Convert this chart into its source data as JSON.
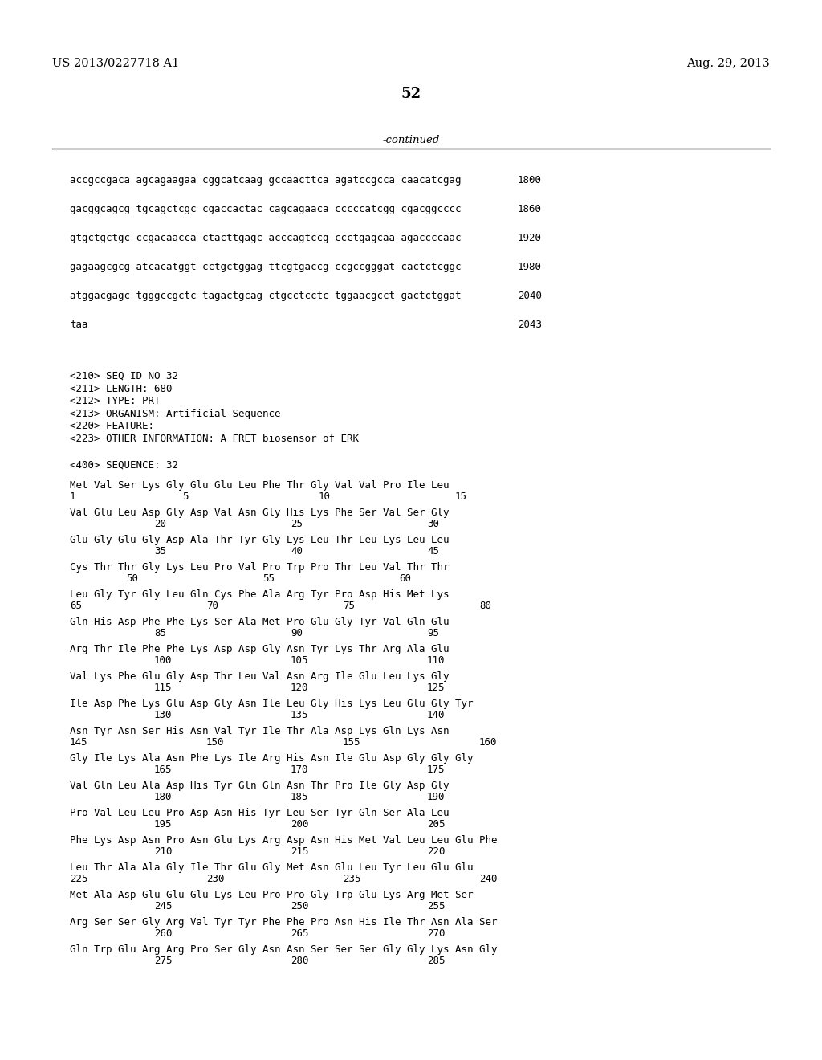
{
  "header_left": "US 2013/0227718 A1",
  "header_right": "Aug. 29, 2013",
  "page_number": "52",
  "continued_text": "-continued",
  "background_color": "#ffffff",
  "dna_lines": [
    {
      "seq": "accgccgaca agcagaagaa cggcatcaag gccaacttca agatccgcca caacatcgag",
      "num": "1800"
    },
    {
      "seq": "gacggcagcg tgcagctcgc cgaccactac cagcagaaca cccccatcgg cgacggcccc",
      "num": "1860"
    },
    {
      "seq": "gtgctgctgc ccgacaacca ctacttgagc acccagtccg ccctgagcaa agaccccaac",
      "num": "1920"
    },
    {
      "seq": "gagaagcgcg atcacatggt cctgctggag ttcgtgaccg ccgccgggat cactctcggc",
      "num": "1980"
    },
    {
      "seq": "atggacgagc tgggccgctc tagactgcag ctgcctcctc tggaacgcct gactctggat",
      "num": "2040"
    },
    {
      "seq": "taa",
      "num": "2043"
    }
  ],
  "info_lines": [
    "<210> SEQ ID NO 32",
    "<211> LENGTH: 680",
    "<212> TYPE: PRT",
    "<213> ORGANISM: Artificial Sequence",
    "<220> FEATURE:",
    "<223> OTHER INFORMATION: A FRET biosensor of ERK"
  ],
  "seq400_header": "<400> SEQUENCE: 32",
  "protein_entries": [
    {
      "seq": "Met Val Ser Lys Gly Glu Glu Leu Phe Thr Gly Val Val Pro Ile Leu",
      "nums": [
        [
          "1",
          87
        ],
        [
          "5",
          227
        ],
        [
          "10",
          397
        ],
        [
          "15",
          567
        ]
      ]
    },
    {
      "seq": "Val Glu Leu Asp Gly Asp Val Asn Gly His Lys Phe Ser Val Ser Gly",
      "nums": [
        [
          "20",
          192
        ],
        [
          "25",
          362
        ],
        [
          "30",
          532
        ]
      ]
    },
    {
      "seq": "Glu Gly Glu Gly Asp Ala Thr Tyr Gly Lys Leu Thr Leu Lys Leu Leu",
      "nums": [
        [
          "35",
          192
        ],
        [
          "40",
          362
        ],
        [
          "45",
          532
        ]
      ]
    },
    {
      "seq": "Cys Thr Thr Gly Lys Leu Pro Val Pro Trp Pro Thr Leu Val Thr Thr",
      "nums": [
        [
          "50",
          157
        ],
        [
          "55",
          327
        ],
        [
          "60",
          497
        ]
      ]
    },
    {
      "seq": "Leu Gly Tyr Gly Leu Gln Cys Phe Ala Arg Tyr Pro Asp His Met Lys",
      "nums": [
        [
          "65",
          87
        ],
        [
          "70",
          257
        ],
        [
          "75",
          427
        ],
        [
          "80",
          597
        ]
      ]
    },
    {
      "seq": "Gln His Asp Phe Phe Lys Ser Ala Met Pro Glu Gly Tyr Val Gln Glu",
      "nums": [
        [
          "85",
          192
        ],
        [
          "90",
          362
        ],
        [
          "95",
          532
        ]
      ]
    },
    {
      "seq": "Arg Thr Ile Phe Phe Lys Asp Asp Gly Asn Tyr Lys Thr Arg Ala Glu",
      "nums": [
        [
          "100",
          192
        ],
        [
          "105",
          362
        ],
        [
          "110",
          532
        ]
      ]
    },
    {
      "seq": "Val Lys Phe Glu Gly Asp Thr Leu Val Asn Arg Ile Glu Leu Lys Gly",
      "nums": [
        [
          "115",
          192
        ],
        [
          "120",
          362
        ],
        [
          "125",
          532
        ]
      ]
    },
    {
      "seq": "Ile Asp Phe Lys Glu Asp Gly Asn Ile Leu Gly His Lys Leu Glu Gly Tyr",
      "nums": [
        [
          "130",
          192
        ],
        [
          "135",
          362
        ],
        [
          "140",
          532
        ]
      ]
    },
    {
      "seq": "Asn Tyr Asn Ser His Asn Val Tyr Ile Thr Ala Asp Lys Gln Lys Asn",
      "nums": [
        [
          "145",
          87
        ],
        [
          "150",
          257
        ],
        [
          "155",
          427
        ],
        [
          "160",
          597
        ]
      ]
    },
    {
      "seq": "Gly Ile Lys Ala Asn Phe Lys Ile Arg His Asn Ile Glu Asp Gly Gly Gly",
      "nums": [
        [
          "165",
          192
        ],
        [
          "170",
          362
        ],
        [
          "175",
          532
        ]
      ]
    },
    {
      "seq": "Val Gln Leu Ala Asp His Tyr Gln Gln Asn Thr Pro Ile Gly Asp Gly",
      "nums": [
        [
          "180",
          192
        ],
        [
          "185",
          362
        ],
        [
          "190",
          532
        ]
      ]
    },
    {
      "seq": "Pro Val Leu Leu Pro Asp Asn His Tyr Leu Ser Tyr Gln Ser Ala Leu",
      "nums": [
        [
          "195",
          192
        ],
        [
          "200",
          362
        ],
        [
          "205",
          532
        ]
      ]
    },
    {
      "seq": "Phe Lys Asp Asn Pro Asn Glu Lys Arg Asp Asn His Met Val Leu Leu Glu Phe",
      "nums": [
        [
          "210",
          192
        ],
        [
          "215",
          362
        ],
        [
          "220",
          532
        ]
      ]
    },
    {
      "seq": "Leu Thr Ala Ala Gly Ile Thr Glu Gly Met Asn Glu Leu Tyr Leu Glu Glu",
      "nums": [
        [
          "225",
          87
        ],
        [
          "230",
          257
        ],
        [
          "235",
          427
        ],
        [
          "240",
          597
        ]
      ]
    },
    {
      "seq": "Met Ala Asp Glu Glu Glu Lys Leu Pro Pro Gly Trp Glu Lys Arg Met Ser",
      "nums": [
        [
          "245",
          192
        ],
        [
          "250",
          362
        ],
        [
          "255",
          532
        ]
      ]
    },
    {
      "seq": "Arg Ser Ser Gly Arg Val Tyr Tyr Phe Phe Pro Asn His Ile Thr Asn Ala Ser",
      "nums": [
        [
          "260",
          192
        ],
        [
          "265",
          362
        ],
        [
          "270",
          532
        ]
      ]
    },
    {
      "seq": "Gln Trp Glu Arg Arg Pro Ser Gly Asn Asn Ser Ser Ser Gly Gly Lys Asn Gly",
      "nums": [
        [
          "275",
          192
        ],
        [
          "280",
          362
        ],
        [
          "285",
          532
        ]
      ]
    }
  ]
}
